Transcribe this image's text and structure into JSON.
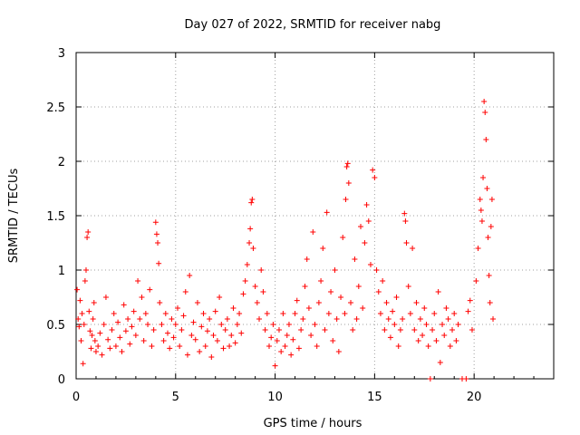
{
  "chart_data": {
    "type": "scatter",
    "title": "Day 027 of 2022, SRMTID for receiver nabg",
    "xlabel": "GPS time / hours",
    "ylabel": "SRMTID / TECUs",
    "xlim": [
      0,
      24
    ],
    "ylim": [
      0,
      3
    ],
    "xticks": [
      0,
      5,
      10,
      15,
      20
    ],
    "yticks": [
      0,
      0.5,
      1,
      1.5,
      2,
      2.5,
      3
    ],
    "grid": true,
    "marker": "+",
    "series": [
      {
        "name": "SRMTID",
        "color": "#ff0000",
        "points": [
          [
            0.05,
            0.82
          ],
          [
            0.1,
            0.55
          ],
          [
            0.15,
            0.48
          ],
          [
            0.2,
            0.72
          ],
          [
            0.25,
            0.35
          ],
          [
            0.3,
            0.6
          ],
          [
            0.35,
            0.14
          ],
          [
            0.4,
            0.5
          ],
          [
            0.45,
            0.9
          ],
          [
            0.5,
            1.0
          ],
          [
            0.55,
            1.3
          ],
          [
            0.6,
            1.35
          ],
          [
            0.65,
            0.62
          ],
          [
            0.7,
            0.44
          ],
          [
            0.75,
            0.28
          ],
          [
            0.8,
            0.4
          ],
          [
            0.85,
            0.55
          ],
          [
            0.9,
            0.7
          ],
          [
            0.95,
            0.35
          ],
          [
            1.0,
            0.25
          ],
          [
            1.1,
            0.3
          ],
          [
            1.2,
            0.42
          ],
          [
            1.3,
            0.22
          ],
          [
            1.4,
            0.5
          ],
          [
            1.5,
            0.75
          ],
          [
            1.6,
            0.36
          ],
          [
            1.7,
            0.28
          ],
          [
            1.8,
            0.45
          ],
          [
            1.9,
            0.6
          ],
          [
            2.0,
            0.3
          ],
          [
            2.1,
            0.52
          ],
          [
            2.2,
            0.38
          ],
          [
            2.3,
            0.25
          ],
          [
            2.4,
            0.68
          ],
          [
            2.5,
            0.44
          ],
          [
            2.6,
            0.55
          ],
          [
            2.7,
            0.32
          ],
          [
            2.8,
            0.48
          ],
          [
            2.9,
            0.62
          ],
          [
            3.0,
            0.4
          ],
          [
            3.1,
            0.9
          ],
          [
            3.2,
            0.55
          ],
          [
            3.3,
            0.75
          ],
          [
            3.4,
            0.35
          ],
          [
            3.5,
            0.6
          ],
          [
            3.6,
            0.5
          ],
          [
            3.7,
            0.82
          ],
          [
            3.8,
            0.3
          ],
          [
            3.9,
            0.45
          ],
          [
            4.0,
            1.44
          ],
          [
            4.05,
            1.33
          ],
          [
            4.1,
            1.25
          ],
          [
            4.15,
            1.06
          ],
          [
            4.2,
            0.7
          ],
          [
            4.3,
            0.5
          ],
          [
            4.4,
            0.35
          ],
          [
            4.5,
            0.6
          ],
          [
            4.6,
            0.42
          ],
          [
            4.7,
            0.28
          ],
          [
            4.8,
            0.55
          ],
          [
            4.9,
            0.38
          ],
          [
            5.0,
            0.5
          ],
          [
            5.1,
            0.65
          ],
          [
            5.2,
            0.3
          ],
          [
            5.3,
            0.45
          ],
          [
            5.4,
            0.58
          ],
          [
            5.5,
            0.8
          ],
          [
            5.6,
            0.22
          ],
          [
            5.7,
            0.95
          ],
          [
            5.8,
            0.4
          ],
          [
            5.9,
            0.52
          ],
          [
            6.0,
            0.36
          ],
          [
            6.1,
            0.7
          ],
          [
            6.2,
            0.25
          ],
          [
            6.3,
            0.48
          ],
          [
            6.4,
            0.6
          ],
          [
            6.5,
            0.3
          ],
          [
            6.6,
            0.44
          ],
          [
            6.7,
            0.55
          ],
          [
            6.8,
            0.2
          ],
          [
            6.9,
            0.4
          ],
          [
            7.0,
            0.62
          ],
          [
            7.1,
            0.35
          ],
          [
            7.2,
            0.75
          ],
          [
            7.3,
            0.5
          ],
          [
            7.4,
            0.28
          ],
          [
            7.5,
            0.45
          ],
          [
            7.6,
            0.55
          ],
          [
            7.7,
            0.3
          ],
          [
            7.8,
            0.4
          ],
          [
            7.9,
            0.65
          ],
          [
            8.0,
            0.33
          ],
          [
            8.1,
            0.5
          ],
          [
            8.2,
            0.6
          ],
          [
            8.3,
            0.42
          ],
          [
            8.4,
            0.78
          ],
          [
            8.5,
            0.9
          ],
          [
            8.6,
            1.05
          ],
          [
            8.7,
            1.25
          ],
          [
            8.75,
            1.38
          ],
          [
            8.8,
            1.62
          ],
          [
            8.85,
            1.65
          ],
          [
            8.9,
            1.2
          ],
          [
            9.0,
            0.85
          ],
          [
            9.1,
            0.7
          ],
          [
            9.2,
            0.55
          ],
          [
            9.3,
            1.0
          ],
          [
            9.4,
            0.8
          ],
          [
            9.5,
            0.45
          ],
          [
            9.6,
            0.6
          ],
          [
            9.7,
            0.3
          ],
          [
            9.8,
            0.38
          ],
          [
            9.9,
            0.5
          ],
          [
            10.0,
            0.12
          ],
          [
            10.1,
            0.35
          ],
          [
            10.2,
            0.45
          ],
          [
            10.3,
            0.25
          ],
          [
            10.4,
            0.6
          ],
          [
            10.5,
            0.3
          ],
          [
            10.6,
            0.4
          ],
          [
            10.7,
            0.5
          ],
          [
            10.8,
            0.22
          ],
          [
            10.9,
            0.36
          ],
          [
            11.0,
            0.6
          ],
          [
            11.1,
            0.72
          ],
          [
            11.2,
            0.28
          ],
          [
            11.3,
            0.45
          ],
          [
            11.4,
            0.55
          ],
          [
            11.5,
            0.85
          ],
          [
            11.6,
            1.1
          ],
          [
            11.7,
            0.65
          ],
          [
            11.8,
            0.4
          ],
          [
            11.9,
            1.35
          ],
          [
            12.0,
            0.5
          ],
          [
            12.1,
            0.3
          ],
          [
            12.2,
            0.7
          ],
          [
            12.3,
            0.9
          ],
          [
            12.4,
            1.2
          ],
          [
            12.5,
            0.45
          ],
          [
            12.6,
            1.53
          ],
          [
            12.7,
            0.6
          ],
          [
            12.8,
            0.8
          ],
          [
            12.9,
            0.35
          ],
          [
            13.0,
            1.0
          ],
          [
            13.1,
            0.55
          ],
          [
            13.2,
            0.25
          ],
          [
            13.3,
            0.75
          ],
          [
            13.4,
            1.3
          ],
          [
            13.5,
            0.6
          ],
          [
            13.55,
            1.65
          ],
          [
            13.6,
            1.95
          ],
          [
            13.65,
            1.98
          ],
          [
            13.7,
            1.8
          ],
          [
            13.8,
            0.7
          ],
          [
            13.9,
            0.45
          ],
          [
            14.0,
            1.1
          ],
          [
            14.1,
            0.55
          ],
          [
            14.2,
            0.85
          ],
          [
            14.3,
            1.4
          ],
          [
            14.4,
            0.65
          ],
          [
            14.5,
            1.25
          ],
          [
            14.6,
            1.6
          ],
          [
            14.7,
            1.45
          ],
          [
            14.8,
            1.05
          ],
          [
            14.9,
            1.92
          ],
          [
            15.0,
            1.85
          ],
          [
            15.1,
            1.0
          ],
          [
            15.2,
            0.8
          ],
          [
            15.3,
            0.6
          ],
          [
            15.4,
            0.9
          ],
          [
            15.5,
            0.45
          ],
          [
            15.6,
            0.7
          ],
          [
            15.7,
            0.55
          ],
          [
            15.8,
            0.38
          ],
          [
            15.9,
            0.62
          ],
          [
            16.0,
            0.5
          ],
          [
            16.1,
            0.75
          ],
          [
            16.2,
            0.3
          ],
          [
            16.3,
            0.45
          ],
          [
            16.4,
            0.55
          ],
          [
            16.5,
            1.52
          ],
          [
            16.55,
            1.45
          ],
          [
            16.6,
            1.25
          ],
          [
            16.7,
            0.85
          ],
          [
            16.8,
            0.6
          ],
          [
            16.9,
            1.2
          ],
          [
            17.0,
            0.45
          ],
          [
            17.1,
            0.7
          ],
          [
            17.2,
            0.35
          ],
          [
            17.3,
            0.55
          ],
          [
            17.4,
            0.4
          ],
          [
            17.5,
            0.65
          ],
          [
            17.6,
            0.5
          ],
          [
            17.7,
            0.3
          ],
          [
            17.8,
            0.0
          ],
          [
            17.9,
            0.45
          ],
          [
            18.0,
            0.6
          ],
          [
            18.1,
            0.35
          ],
          [
            18.2,
            0.8
          ],
          [
            18.3,
            0.15
          ],
          [
            18.4,
            0.5
          ],
          [
            18.5,
            0.4
          ],
          [
            18.6,
            0.65
          ],
          [
            18.7,
            0.55
          ],
          [
            18.8,
            0.3
          ],
          [
            18.9,
            0.45
          ],
          [
            19.0,
            0.6
          ],
          [
            19.1,
            0.35
          ],
          [
            19.2,
            0.5
          ],
          [
            19.4,
            0.0
          ],
          [
            19.6,
            0.0
          ],
          [
            19.7,
            0.62
          ],
          [
            19.8,
            0.72
          ],
          [
            19.9,
            0.45
          ],
          [
            20.1,
            0.9
          ],
          [
            20.2,
            1.2
          ],
          [
            20.3,
            1.65
          ],
          [
            20.35,
            1.55
          ],
          [
            20.4,
            1.45
          ],
          [
            20.45,
            1.85
          ],
          [
            20.5,
            2.55
          ],
          [
            20.55,
            2.45
          ],
          [
            20.6,
            2.2
          ],
          [
            20.65,
            1.75
          ],
          [
            20.7,
            1.3
          ],
          [
            20.75,
            0.95
          ],
          [
            20.8,
            0.7
          ],
          [
            20.85,
            1.4
          ],
          [
            20.9,
            1.65
          ],
          [
            20.95,
            0.55
          ]
        ]
      }
    ]
  }
}
